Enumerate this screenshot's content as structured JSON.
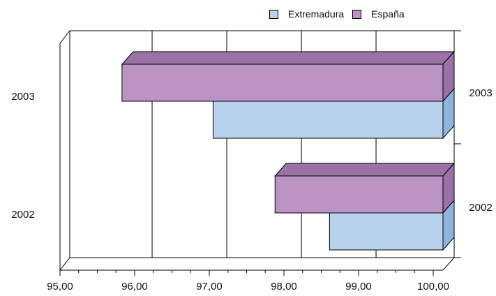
{
  "chart_data": {
    "type": "bar",
    "orientation": "horizontal",
    "style": "3d",
    "categories": [
      "2003",
      "2002"
    ],
    "series": [
      {
        "name": "España",
        "values": [
          95.7,
          97.75
        ],
        "color": "#bb94c4",
        "dark": "#9a72a6"
      },
      {
        "name": "Extremadura",
        "values": [
          96.92,
          98.48
        ],
        "color": "#b8d2ee",
        "dark": "#8fb3da"
      }
    ],
    "legend_order": [
      "Extremadura",
      "España"
    ],
    "x_ticks": [
      "95,00",
      "96,00",
      "97,00",
      "98,00",
      "99,00",
      "100,00"
    ],
    "xlim": [
      95,
      100
    ],
    "grid": true,
    "legend_position": "top-right"
  }
}
